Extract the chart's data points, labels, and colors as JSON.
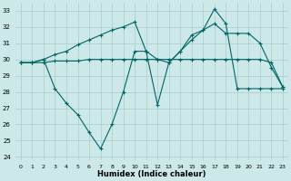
{
  "xlabel": "Humidex (Indice chaleur)",
  "background_color": "#cce8e8",
  "grid_color": "#aacccc",
  "line_color": "#006666",
  "xlim_min": -0.5,
  "xlim_max": 23.5,
  "ylim_min": 23.8,
  "ylim_max": 33.5,
  "yticks": [
    24,
    25,
    26,
    27,
    28,
    29,
    30,
    31,
    32,
    33
  ],
  "xticks": [
    0,
    1,
    2,
    3,
    4,
    5,
    6,
    7,
    8,
    9,
    10,
    11,
    12,
    13,
    14,
    15,
    16,
    17,
    18,
    19,
    20,
    21,
    22,
    23
  ],
  "series1_x": [
    0,
    1,
    2,
    3,
    4,
    5,
    6,
    7,
    8,
    9,
    10,
    11,
    12,
    13,
    14,
    15,
    16,
    17,
    18,
    19,
    20,
    21,
    22,
    23
  ],
  "series1_y": [
    29.8,
    29.8,
    29.8,
    29.9,
    29.9,
    29.9,
    30.0,
    30.0,
    30.0,
    30.0,
    30.0,
    30.0,
    30.0,
    30.0,
    30.0,
    30.0,
    30.0,
    30.0,
    30.0,
    30.0,
    30.0,
    30.0,
    29.8,
    28.3
  ],
  "series2_x": [
    0,
    1,
    2,
    3,
    4,
    5,
    6,
    7,
    8,
    9,
    10,
    11,
    12,
    13,
    14,
    15,
    16,
    17,
    18,
    19,
    20,
    21,
    22,
    23
  ],
  "series2_y": [
    29.8,
    29.8,
    30.0,
    30.3,
    30.5,
    30.9,
    31.2,
    31.5,
    31.8,
    32.0,
    32.3,
    30.5,
    30.0,
    29.8,
    30.5,
    31.2,
    31.8,
    32.2,
    31.6,
    31.6,
    31.6,
    31.0,
    29.5,
    28.3
  ],
  "series3_x": [
    0,
    1,
    2,
    3,
    4,
    5,
    6,
    7,
    8,
    9,
    10,
    11,
    12,
    13,
    14,
    15,
    16,
    17,
    18,
    19,
    20,
    21,
    22,
    23
  ],
  "series3_y": [
    29.8,
    29.8,
    30.0,
    28.2,
    27.3,
    26.6,
    25.5,
    24.5,
    26.0,
    28.0,
    30.5,
    30.5,
    27.2,
    29.8,
    30.5,
    31.5,
    31.8,
    33.1,
    32.2,
    28.2,
    28.2,
    28.2,
    28.2,
    28.2
  ]
}
